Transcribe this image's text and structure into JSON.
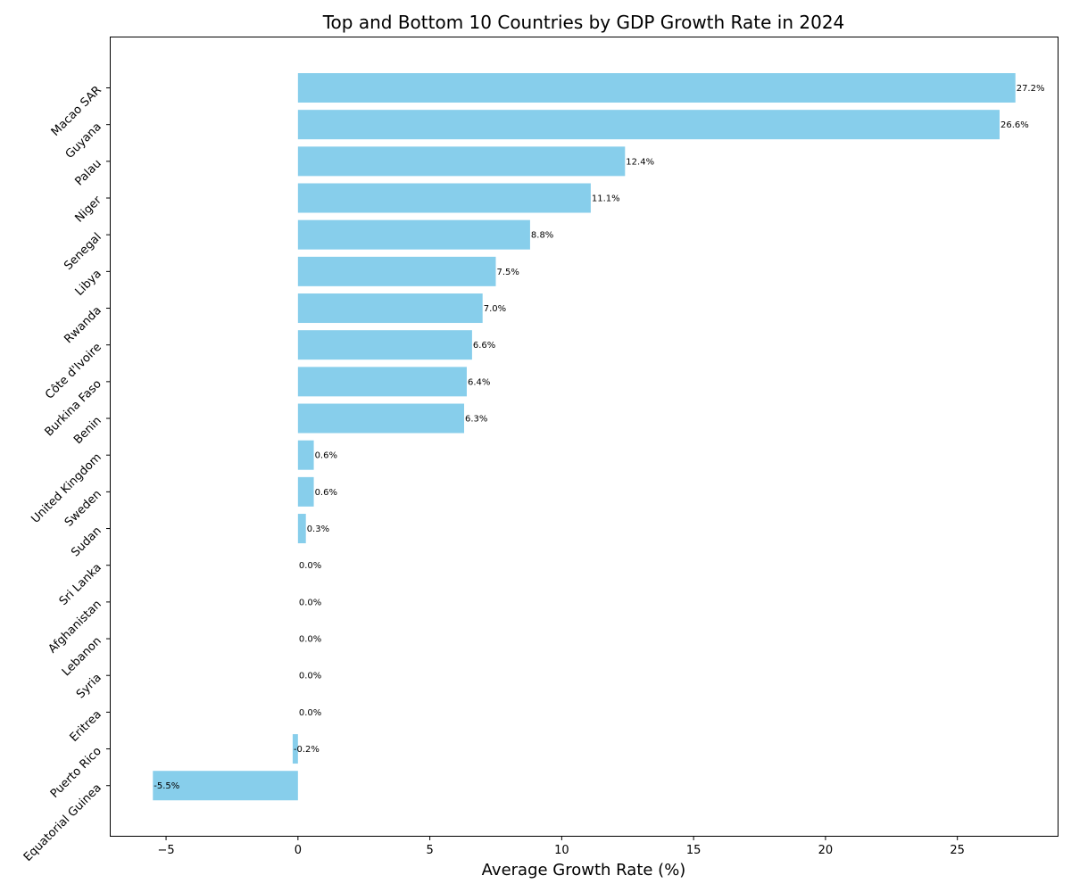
{
  "chart_data": {
    "type": "bar",
    "orientation": "horizontal",
    "title": "Top and Bottom 10 Countries by GDP Growth Rate in 2024",
    "xlabel": "Average Growth Rate (%)",
    "ylabel": "",
    "xlim": [
      -7.1,
      28.8
    ],
    "xticks": [
      -5,
      0,
      5,
      10,
      15,
      20,
      25
    ],
    "xtick_labels": [
      "−5",
      "0",
      "5",
      "10",
      "15",
      "20",
      "25"
    ],
    "grid": false,
    "bar_color": "#87CEEB",
    "categories": [
      "Macao SAR",
      "Guyana",
      "Palau",
      "Niger",
      "Senegal",
      "Libya",
      "Rwanda",
      "Côte d'Ivoire",
      "Burkina Faso",
      "Benin",
      "United Kingdom",
      "Sweden",
      "Sudan",
      "Sri Lanka",
      "Afghanistan",
      "Lebanon",
      "Syria",
      "Eritrea",
      "Puerto Rico",
      "Equatorial Guinea"
    ],
    "values": [
      27.2,
      26.6,
      12.4,
      11.1,
      8.8,
      7.5,
      7.0,
      6.6,
      6.4,
      6.3,
      0.6,
      0.6,
      0.3,
      0.0,
      0.0,
      0.0,
      0.0,
      0.0,
      -0.2,
      -5.5
    ],
    "value_labels": [
      "27.2%",
      "26.6%",
      "12.4%",
      "11.1%",
      "8.8%",
      "7.5%",
      "7.0%",
      "6.6%",
      "6.4%",
      "6.3%",
      "0.6%",
      "0.6%",
      "0.3%",
      "0.0%",
      "0.0%",
      "0.0%",
      "0.0%",
      "0.0%",
      "-0.2%",
      "-5.5%"
    ]
  }
}
